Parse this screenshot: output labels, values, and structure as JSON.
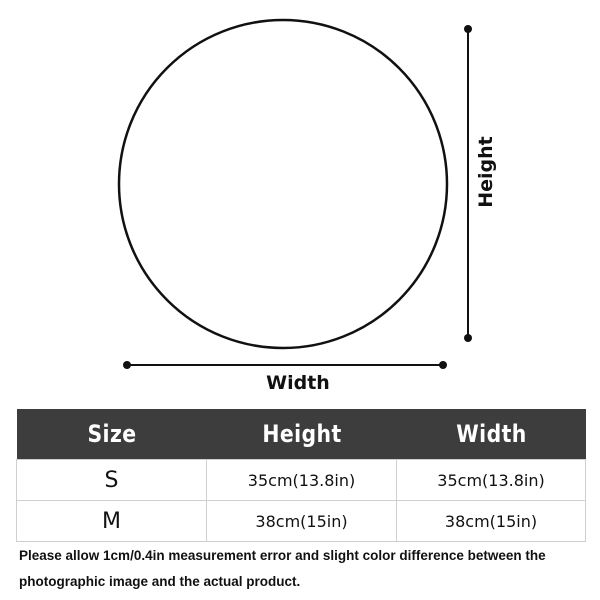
{
  "diagram": {
    "height_label": "Height",
    "width_label": "Width"
  },
  "table": {
    "headers": [
      "Size",
      "Height",
      "Width"
    ],
    "rows": [
      {
        "size": "S",
        "height": "35cm(13.8in)",
        "width": "35cm(13.8in)"
      },
      {
        "size": "M",
        "height": "38cm(15in)",
        "width": "38cm(15in)"
      }
    ],
    "header_color": "#3d3d3d"
  },
  "note": "Please allow 1cm/0.4in measurement error and slight color difference between the photographic image and the actual product."
}
